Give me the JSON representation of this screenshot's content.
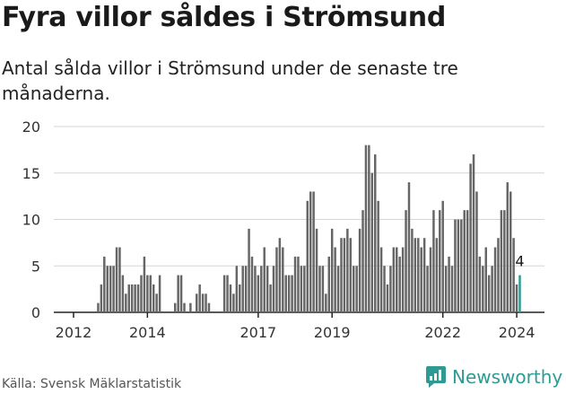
{
  "title": "Fyra villor såldes i Strömsund",
  "subtitle": "Antal sålda villor i Strömsund under de senaste tre månaderna.",
  "source": "Källa: Svensk Mäklarstatistik",
  "brand": "Newsworthy",
  "colors": {
    "bar": "#666666",
    "highlight": "#2f9a93",
    "grid": "#d6d6d6",
    "axis": "#222222",
    "text": "#333333"
  },
  "chart_data": {
    "type": "bar",
    "title": "Fyra villor såldes i Strömsund",
    "xlabel": "",
    "ylabel": "",
    "ylim": [
      0,
      20
    ],
    "yticks": [
      0,
      5,
      10,
      15,
      20
    ],
    "xticks": [
      {
        "label": "2012",
        "index": 0
      },
      {
        "label": "2014",
        "index": 24
      },
      {
        "label": "2017",
        "index": 60
      },
      {
        "label": "2019",
        "index": 84
      },
      {
        "label": "2022",
        "index": 120
      },
      {
        "label": "2024",
        "index": 144
      }
    ],
    "highlight_label": "4",
    "values": [
      0,
      0,
      0,
      0,
      0,
      0,
      0,
      0,
      1,
      3,
      6,
      5,
      5,
      5,
      7,
      7,
      4,
      2,
      3,
      3,
      3,
      3,
      4,
      6,
      4,
      4,
      3,
      2,
      4,
      0,
      0,
      0,
      0,
      1,
      4,
      4,
      1,
      0,
      1,
      0,
      2,
      3,
      2,
      2,
      1,
      0,
      0,
      0,
      0,
      4,
      4,
      3,
      2,
      5,
      3,
      5,
      5,
      9,
      6,
      5,
      4,
      5,
      7,
      5,
      3,
      5,
      7,
      8,
      7,
      4,
      4,
      4,
      6,
      6,
      5,
      5,
      12,
      13,
      13,
      9,
      5,
      5,
      2,
      6,
      9,
      7,
      5,
      8,
      8,
      9,
      8,
      5,
      5,
      9,
      11,
      18,
      18,
      15,
      17,
      12,
      7,
      5,
      3,
      5,
      7,
      7,
      6,
      7,
      11,
      14,
      9,
      8,
      8,
      7,
      8,
      5,
      7,
      11,
      8,
      11,
      12,
      5,
      6,
      5,
      10,
      10,
      10,
      11,
      11,
      16,
      17,
      13,
      6,
      5,
      7,
      4,
      5,
      7,
      8,
      11,
      11,
      14,
      13,
      8,
      3,
      4
    ]
  }
}
